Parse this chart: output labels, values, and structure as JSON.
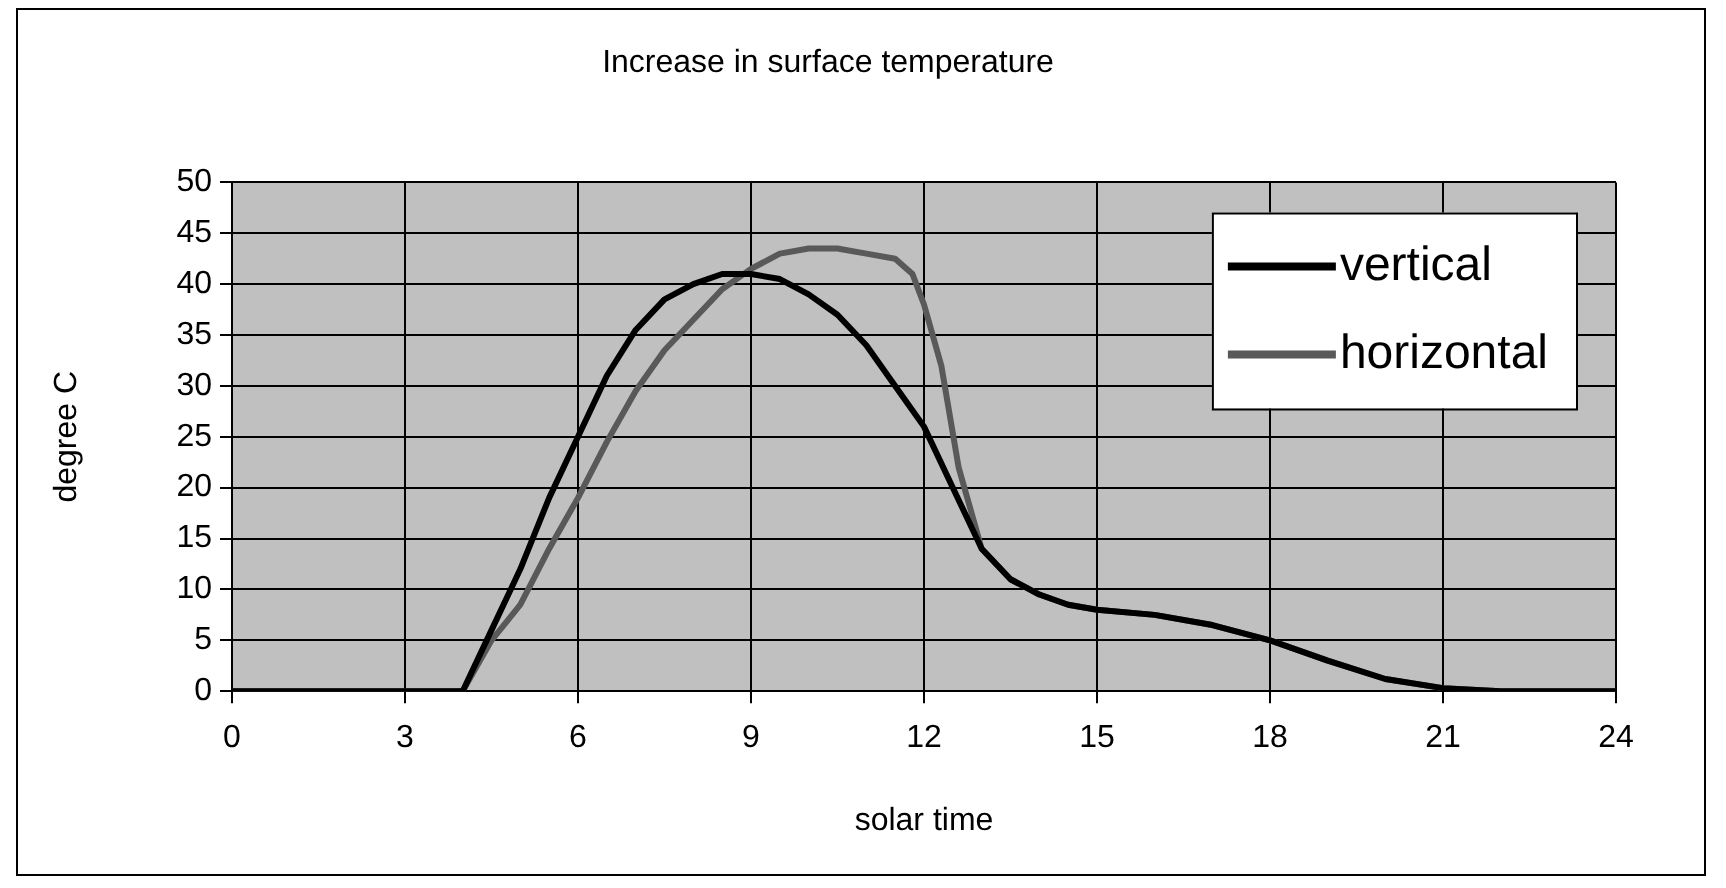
{
  "chart_data": {
    "type": "line",
    "title": "Increase in surface temperature",
    "xlabel": "solar time",
    "ylabel": "degree C",
    "xlim": [
      0,
      24
    ],
    "xticks": [
      0,
      3,
      6,
      9,
      12,
      15,
      18,
      21,
      24
    ],
    "ylim": [
      0,
      50
    ],
    "yticks": [
      0,
      5,
      10,
      15,
      20,
      25,
      30,
      35,
      40,
      45,
      50
    ],
    "grid": true,
    "legend": "top right",
    "marker": "none",
    "line_style": "solid",
    "series": [
      {
        "name": "vertical",
        "color": "#000000",
        "x": [
          0,
          1,
          2,
          3,
          3.5,
          4,
          4.5,
          5,
          5.5,
          6,
          6.5,
          7,
          7.5,
          8,
          8.5,
          9,
          9.5,
          10,
          10.5,
          11,
          11.5,
          12,
          12.5,
          13,
          13.5,
          14,
          14.5,
          15,
          16,
          17,
          18,
          19,
          20,
          21,
          22,
          23,
          24
        ],
        "values": [
          0,
          0,
          0,
          0,
          0,
          0,
          6,
          12,
          19,
          25,
          31,
          35.5,
          38.5,
          40,
          41,
          41,
          40.5,
          39,
          37,
          34,
          30,
          26,
          20,
          14,
          11,
          9.5,
          8.5,
          8,
          7.5,
          6.5,
          5,
          3,
          1.2,
          0.3,
          0,
          0,
          0
        ]
      },
      {
        "name": "horizontal",
        "color": "#595959",
        "x": [
          0,
          1,
          2,
          3,
          3.5,
          4,
          4.5,
          5,
          5.5,
          6,
          6.5,
          7,
          7.5,
          8,
          8.5,
          9,
          9.5,
          10,
          10.5,
          11,
          11.5,
          11.8,
          12,
          12.3,
          12.6,
          13,
          13.5,
          14,
          14.5,
          15,
          16,
          17,
          18,
          19,
          20,
          21,
          22,
          23,
          24
        ],
        "values": [
          0,
          0,
          0,
          0,
          0,
          0,
          5,
          8.5,
          14,
          19,
          24.5,
          29.5,
          33.5,
          36.5,
          39.5,
          41.5,
          43,
          43.5,
          43.5,
          43,
          42.5,
          41,
          38,
          32,
          22,
          14,
          11,
          9.5,
          8.5,
          8,
          7.5,
          6.5,
          5,
          3,
          1.2,
          0.3,
          0,
          0,
          0
        ]
      }
    ]
  }
}
